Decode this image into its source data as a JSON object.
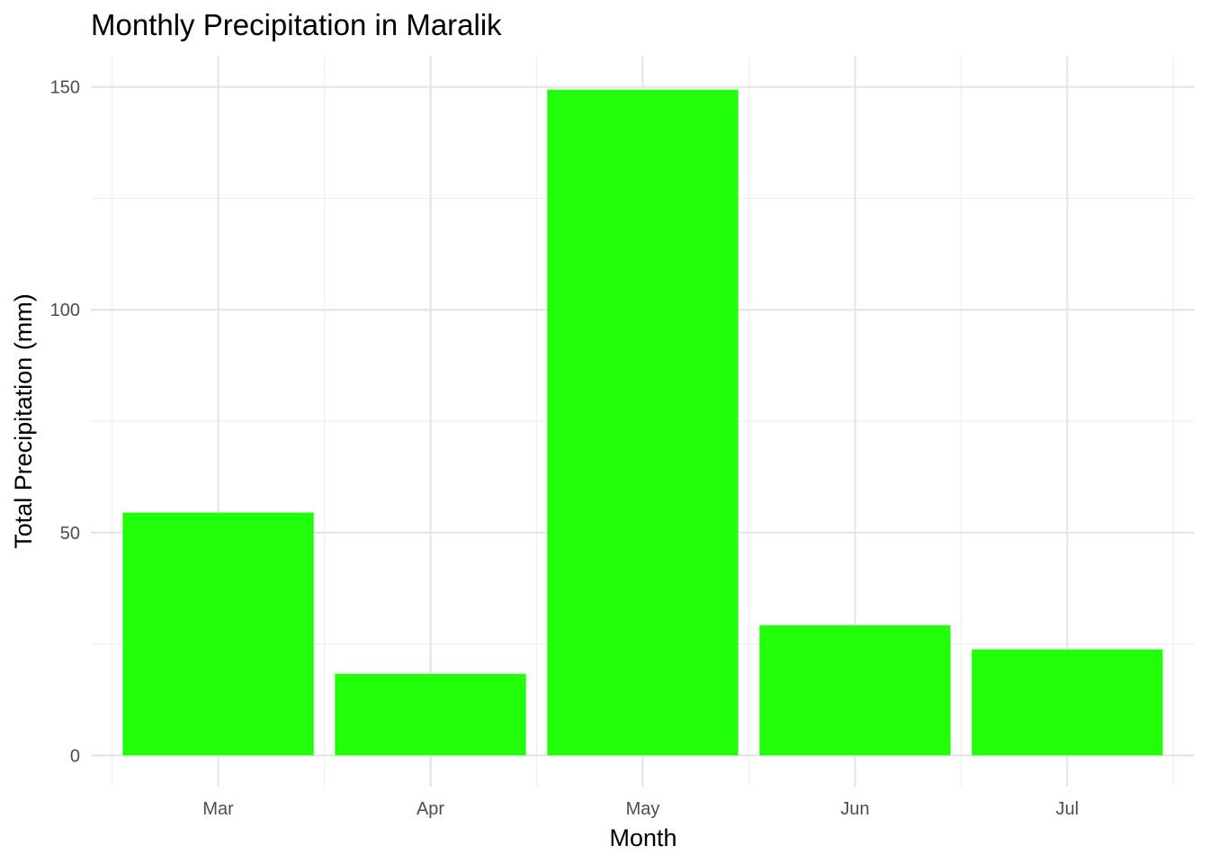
{
  "chart_data": {
    "type": "bar",
    "title": "Monthly Precipitation in Maralik",
    "xlabel": "Month",
    "ylabel": "Total Precipitation (mm)",
    "categories": [
      "Mar",
      "Apr",
      "May",
      "Jun",
      "Jul"
    ],
    "values": [
      54.5,
      18.3,
      149.4,
      29.2,
      23.8
    ],
    "ylim": [
      -7,
      157
    ],
    "yticks": [
      0,
      50,
      100,
      150
    ],
    "ytick_labels": [
      "0",
      "50",
      "100",
      "150"
    ],
    "grid": true,
    "bar_color": "#22ff0b",
    "legend": "none"
  }
}
